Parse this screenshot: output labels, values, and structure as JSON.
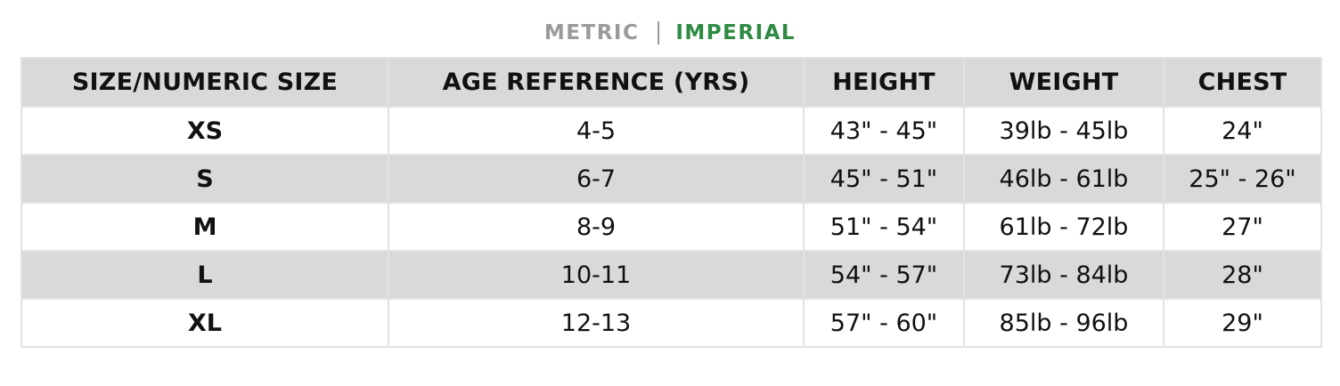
{
  "unit_toggle": {
    "metric_label": "METRIC",
    "imperial_label": "IMPERIAL",
    "active": "IMPERIAL",
    "colors": {
      "inactive": "#9a9a9a",
      "active": "#2f8a43"
    }
  },
  "table": {
    "headers": [
      "SIZE/NUMERIC SIZE",
      "AGE REFERENCE (YRS)",
      "HEIGHT",
      "WEIGHT",
      "CHEST"
    ],
    "rows": [
      [
        "XS",
        "4-5",
        "43\" - 45\"",
        "39lb - 45lb",
        "24\""
      ],
      [
        "S",
        "6-7",
        "45\" - 51\"",
        "46lb - 61lb",
        "25\" - 26\""
      ],
      [
        "M",
        "8-9",
        "51\" - 54\"",
        "61lb - 72lb",
        "27\""
      ],
      [
        "L",
        "10-11",
        "54\" - 57\"",
        "73lb - 84lb",
        "28\""
      ],
      [
        "XL",
        "12-13",
        "57\" - 60\"",
        "85lb - 96lb",
        "29\""
      ]
    ],
    "colors": {
      "header_bg": "#d9d9d9",
      "stripe_bg": "#d9d9d9",
      "border": "#e2e2e2"
    }
  }
}
